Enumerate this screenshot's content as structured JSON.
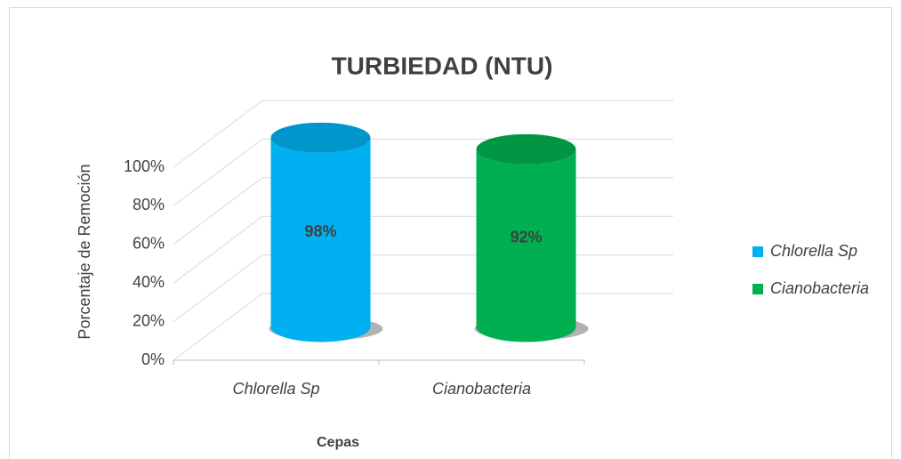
{
  "chart_data": {
    "type": "cylinder",
    "title": "TURBIEDAD (NTU)",
    "x_label": "Cepas",
    "y_label": "Porcentaje de Remoción",
    "categories": [
      "Chlorella Sp",
      "Cianobacteria"
    ],
    "values": [
      98,
      92
    ],
    "value_labels": [
      "98%",
      "92%"
    ],
    "colors": [
      "#00b0f0",
      "#00b050"
    ],
    "ylim": [
      0,
      100
    ],
    "yticks": [
      {
        "value": 0,
        "label": "0%"
      },
      {
        "value": 20,
        "label": "20%"
      },
      {
        "value": 40,
        "label": "40%"
      },
      {
        "value": 60,
        "label": "60%"
      },
      {
        "value": 80,
        "label": "80%"
      },
      {
        "value": 100,
        "label": "100%"
      }
    ],
    "grid": true,
    "legend": "right"
  }
}
